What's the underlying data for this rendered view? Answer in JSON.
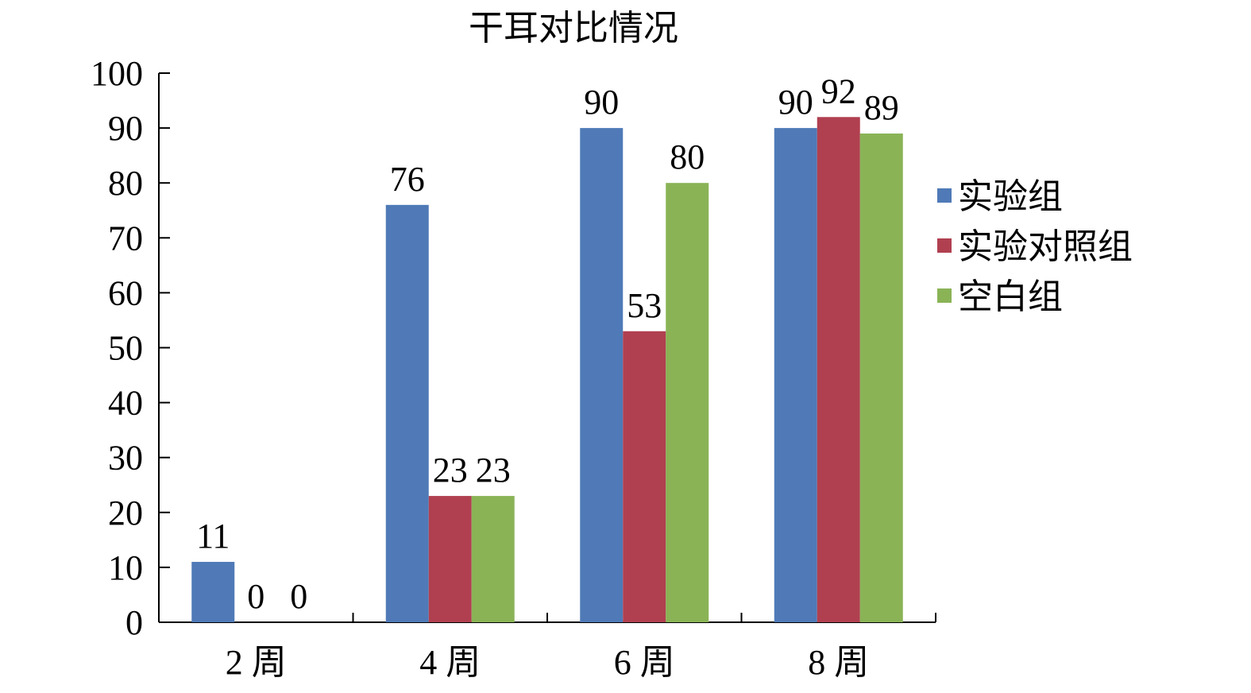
{
  "chart_data": {
    "type": "bar",
    "title": "干耳对比情况",
    "categories": [
      "2 周",
      "4 周",
      "6 周",
      "8 周"
    ],
    "series": [
      {
        "name": "实验组",
        "color": "#4f7ab7",
        "values": [
          11,
          76,
          90,
          90
        ]
      },
      {
        "name": "实验对照组",
        "color": "#b04050",
        "values": [
          0,
          23,
          53,
          92
        ]
      },
      {
        "name": "空白组",
        "color": "#8ab356",
        "values": [
          0,
          23,
          80,
          89
        ]
      }
    ],
    "y_ticks": [
      "0",
      "10",
      "20",
      "30",
      "40",
      "50",
      "60",
      "70",
      "80",
      "90",
      "100"
    ],
    "ylim": [
      0,
      100
    ],
    "grid": false,
    "legend_position": "right"
  }
}
